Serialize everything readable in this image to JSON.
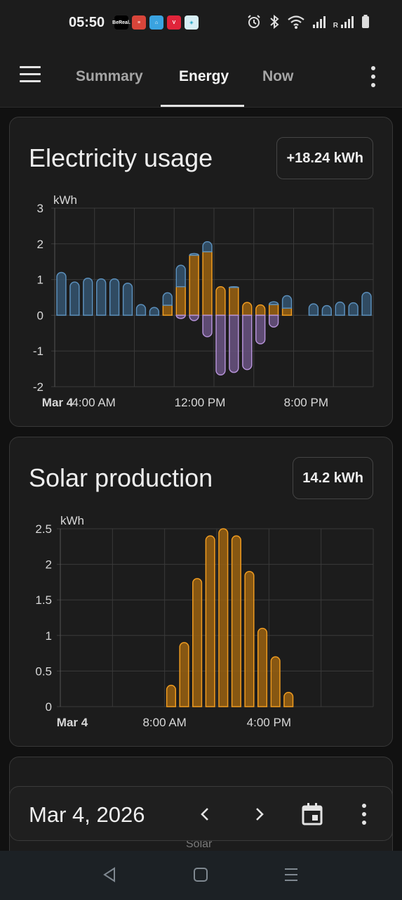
{
  "status_bar": {
    "time": "05:50",
    "app_icons": [
      "BeReal.",
      "todoist",
      "home-assistant",
      "vivaldi",
      "misc-app"
    ],
    "indicators": [
      "alarm-icon",
      "bluetooth-icon",
      "wifi-icon",
      "signal-icon",
      "roaming-signal-icon",
      "battery-icon"
    ],
    "roaming_label": "R"
  },
  "app_bar": {
    "tabs": [
      {
        "label": "Summary",
        "active": false
      },
      {
        "label": "Energy",
        "active": true
      },
      {
        "label": "Now",
        "active": false
      }
    ]
  },
  "cards": {
    "electricity": {
      "title": "Electricity usage",
      "total": "+18.24 kWh"
    },
    "solar": {
      "title": "Solar production",
      "total": "14.2 kWh"
    }
  },
  "date_bar": {
    "date": "Mar 4, 2026",
    "peek_label": "Solar"
  },
  "colors": {
    "grid_import": "#5b8fbb",
    "grid_import_fill": "#34536f",
    "solar": "#f09c20",
    "solar_fill": "#9a6210",
    "export": "#b592d8",
    "export_fill": "#6a5383"
  },
  "chart_data": [
    {
      "type": "bar",
      "stacked": true,
      "ylabel": "kWh",
      "ylim": [
        -2,
        3
      ],
      "yticks": [
        "3",
        "2",
        "1",
        "0",
        "-1",
        "-2"
      ],
      "xtick_labels": [
        "Mar 4",
        "4:00 AM",
        "12:00 PM",
        "8:00 PM"
      ],
      "hours": [
        0,
        1,
        2,
        3,
        4,
        5,
        6,
        7,
        8,
        9,
        10,
        11,
        12,
        13,
        14,
        15,
        16,
        17,
        18,
        19,
        20,
        21,
        22,
        23
      ],
      "series": [
        {
          "role": "grid_import",
          "values": [
            1.2,
            0.93,
            1.04,
            1.02,
            1.02,
            0.9,
            0.3,
            0.22,
            0.35,
            0.6,
            0.05,
            0.28,
            0.0,
            0.02,
            0.0,
            0.0,
            0.08,
            0.35,
            0.0,
            0.32,
            0.27,
            0.37,
            0.35,
            0.36
          ]
        },
        {
          "role": "solar",
          "values": [
            0,
            0,
            0,
            0,
            0,
            0,
            0,
            0,
            0.28,
            0.8,
            1.68,
            1.78,
            0.8,
            0.78,
            0.36,
            0.29,
            0.3,
            0.2,
            0,
            0,
            0,
            0,
            0,
            0
          ]
        },
        {
          "role": "grid_export",
          "values": [
            0,
            0,
            0,
            0,
            0,
            0,
            0,
            0,
            0,
            -0.09,
            -0.15,
            -0.6,
            -1.67,
            -1.6,
            -1.52,
            -0.8,
            -0.33,
            0,
            0,
            0,
            0,
            0,
            0,
            0
          ]
        }
      ],
      "last_value": 0.64
    },
    {
      "type": "bar",
      "ylabel": "kWh",
      "ylim": [
        0,
        2.5
      ],
      "yticks": [
        "2.5",
        "2",
        "1.5",
        "1",
        "0.5",
        "0"
      ],
      "xtick_labels": [
        "Mar 4",
        "8:00 AM",
        "4:00 PM"
      ],
      "hours": [
        0,
        1,
        2,
        3,
        4,
        5,
        6,
        7,
        8,
        9,
        10,
        11,
        12,
        13,
        14,
        15,
        16,
        17,
        18,
        19,
        20,
        21,
        22,
        23
      ],
      "values": [
        0,
        0,
        0,
        0,
        0,
        0,
        0,
        0,
        0.3,
        0.9,
        1.8,
        2.4,
        2.5,
        2.4,
        1.9,
        1.1,
        0.7,
        0.2,
        0,
        0,
        0,
        0,
        0,
        0
      ]
    }
  ]
}
